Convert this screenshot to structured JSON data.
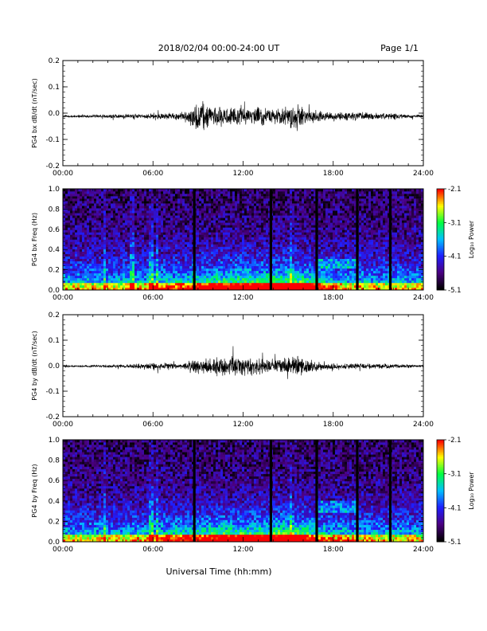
{
  "header": {
    "title": "2018/02/04  00:00-24:00 UT",
    "page": "Page 1/1"
  },
  "xlabel": "Universal Time (hh:mm)",
  "colorbar_label": "Log₁₀ Power",
  "colors": {
    "trace": "#000000",
    "colormap": [
      "#000000",
      "#4b0082",
      "#1e1eff",
      "#00c0ff",
      "#00ff40",
      "#ffff00",
      "#ff0000"
    ]
  },
  "chart_data": [
    {
      "type": "line",
      "ylabel": "PG4 bx dB/dt (nT/sec)",
      "x_ticks": [
        "00:00",
        "06:00",
        "12:00",
        "18:00",
        "24:00"
      ],
      "xlim": [
        0,
        24
      ],
      "ylim": [
        -0.2,
        0.2
      ],
      "y_ticks": [
        "0.2",
        "0.1",
        "0.0",
        "-0.1",
        "-0.2"
      ],
      "x": [
        0,
        2,
        4,
        6,
        8,
        8.5,
        9,
        9.5,
        10,
        11,
        12,
        13,
        14,
        15,
        15.5,
        16,
        17,
        18,
        19,
        20,
        21,
        22,
        23,
        24
      ],
      "envelope": [
        0.004,
        0.006,
        0.01,
        0.012,
        0.016,
        0.04,
        0.07,
        0.06,
        0.045,
        0.04,
        0.04,
        0.04,
        0.035,
        0.04,
        0.07,
        0.035,
        0.025,
        0.02,
        0.018,
        0.02,
        0.016,
        0.012,
        0.008,
        0.006
      ],
      "baseline": -0.012
    },
    {
      "type": "heatmap",
      "ylabel": "PG4 bx Freq (Hz)",
      "x_ticks": [
        "00:00",
        "06:00",
        "12:00",
        "18:00",
        "24:00"
      ],
      "xlim": [
        0,
        24
      ],
      "ylim": [
        0,
        1.0
      ],
      "y_ticks": [
        "1.0",
        "0.8",
        "0.6",
        "0.4",
        "0.2",
        "0.0"
      ],
      "zlim": [
        -5.1,
        -2.1
      ],
      "z_ticks": [
        "-2.1",
        "-3.1",
        "-4.1",
        "-5.1"
      ],
      "gaps_hours": [
        8.75,
        13.85,
        16.9,
        19.6,
        21.8
      ],
      "lines_hours": [
        2.8,
        4.6,
        5.9,
        6.3,
        15.2
      ],
      "enhanced_band": {
        "start_hours": 16.9,
        "end_hours": 19.6,
        "freq_low": 0.22,
        "freq_high": 0.32
      }
    },
    {
      "type": "line",
      "ylabel": "PG4 by dB/dt (nT/sec)",
      "x_ticks": [
        "00:00",
        "06:00",
        "12:00",
        "18:00",
        "24:00"
      ],
      "xlim": [
        0,
        24
      ],
      "ylim": [
        -0.2,
        0.2
      ],
      "y_ticks": [
        "0.2",
        "0.1",
        "0.0",
        "-0.1",
        "-0.2"
      ],
      "x": [
        0,
        2,
        4,
        5.5,
        6,
        8,
        8.5,
        9,
        10,
        11,
        12,
        13,
        14,
        15,
        15.5,
        16,
        17,
        18,
        19,
        20,
        21,
        22,
        23,
        24
      ],
      "envelope": [
        0.004,
        0.005,
        0.008,
        0.012,
        0.02,
        0.01,
        0.03,
        0.035,
        0.04,
        0.045,
        0.045,
        0.04,
        0.035,
        0.04,
        0.06,
        0.035,
        0.02,
        0.015,
        0.015,
        0.014,
        0.012,
        0.01,
        0.008,
        0.006
      ],
      "baseline": -0.002
    },
    {
      "type": "heatmap",
      "ylabel": "PG4 by Freq (Hz)",
      "x_ticks": [
        "00:00",
        "06:00",
        "12:00",
        "18:00",
        "24:00"
      ],
      "xlim": [
        0,
        24
      ],
      "ylim": [
        0,
        1.0
      ],
      "y_ticks": [
        "1.0",
        "0.8",
        "0.6",
        "0.4",
        "0.2",
        "0.0"
      ],
      "zlim": [
        -5.1,
        -2.1
      ],
      "z_ticks": [
        "-2.1",
        "-3.1",
        "-4.1",
        "-5.1"
      ],
      "gaps_hours": [
        8.75,
        13.85,
        16.9,
        19.6,
        21.8
      ],
      "lines_hours": [
        2.8,
        5.9,
        6.3,
        15.2
      ],
      "enhanced_band": {
        "start_hours": 16.9,
        "end_hours": 19.6,
        "freq_low": 0.28,
        "freq_high": 0.4
      }
    }
  ]
}
